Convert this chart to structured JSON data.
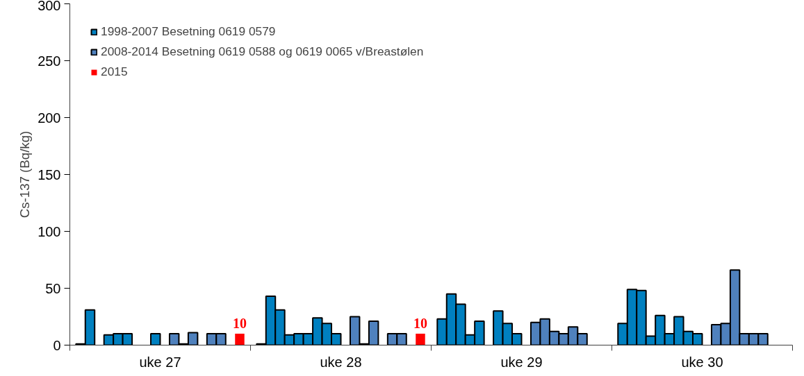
{
  "chart_data": {
    "type": "bar",
    "ylabel": "Cs-137 (Bq/kg)",
    "categories": [
      "uke 27",
      "uke 28",
      "uke 29",
      "uke 30"
    ],
    "ylim": [
      0,
      300
    ],
    "yticks": [
      0,
      50,
      100,
      150,
      200,
      250,
      300
    ],
    "grid": false,
    "legend": "top left",
    "series": [
      {
        "name": "1998-2007 Besetning 0619 0579",
        "color": "#0080c0",
        "values": [
          1,
          1,
          23,
          19
        ]
      },
      {
        "color": "#0080c0",
        "values": [
          31,
          43,
          45,
          49
        ]
      },
      {
        "color": "#0080c0",
        "values": [
          null,
          31,
          36,
          48
        ]
      },
      {
        "color": "#0080c0",
        "values": [
          9,
          9,
          9,
          8
        ]
      },
      {
        "color": "#0080c0",
        "values": [
          10,
          10,
          21,
          26
        ]
      },
      {
        "color": "#0080c0",
        "values": [
          10,
          10,
          null,
          10
        ]
      },
      {
        "color": "#0080c0",
        "values": [
          null,
          24,
          30,
          25
        ]
      },
      {
        "color": "#0080c0",
        "values": [
          null,
          19,
          19,
          12
        ]
      },
      {
        "color": "#0080c0",
        "values": [
          10,
          10,
          10,
          10
        ]
      },
      {
        "color": "#0080c0",
        "values": [
          null,
          null,
          null,
          null
        ]
      },
      {
        "name": "2008-2014 Besetning 0619 0588 og 0619 0065 v/Breastølen",
        "color": "#4f81bd",
        "values": [
          10,
          25,
          20,
          18
        ]
      },
      {
        "color": "#4f81bd",
        "values": [
          1,
          1,
          23,
          19
        ]
      },
      {
        "color": "#4f81bd",
        "values": [
          11,
          21,
          12,
          66
        ]
      },
      {
        "color": "#4f81bd",
        "values": [
          null,
          null,
          10,
          10
        ]
      },
      {
        "color": "#4f81bd",
        "values": [
          10,
          10,
          16,
          10
        ]
      },
      {
        "color": "#4f81bd",
        "values": [
          10,
          10,
          10,
          10
        ]
      },
      {
        "color": "#4f81bd",
        "values": [
          null,
          null,
          null,
          null
        ]
      },
      {
        "name": "2015",
        "color": "#ff0000",
        "values": [
          10,
          10,
          null,
          null
        ],
        "value_labels": [
          "10",
          "10",
          null,
          null
        ]
      }
    ]
  }
}
